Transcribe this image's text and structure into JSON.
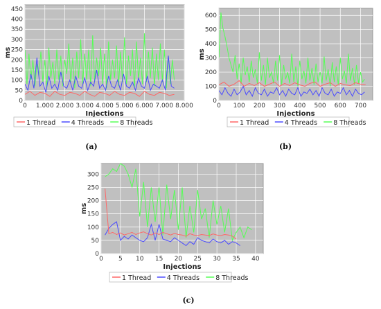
{
  "colors": {
    "plot_bg": "#c0c0c0",
    "grid": "#ffffff",
    "thread1": "#ff6666",
    "thread4": "#4a4aff",
    "thread8": "#55ff55"
  },
  "chart_data": [
    {
      "id": "a",
      "type": "line",
      "caption": "(a)",
      "xlabel": "Injections",
      "ylabel": "ms",
      "xlim": [
        0,
        8000
      ],
      "ylim": [
        0,
        470
      ],
      "xticks": [
        0,
        1000,
        2000,
        3000,
        4000,
        5000,
        6000,
        7000,
        8000
      ],
      "xtick_labels": [
        "0",
        "1.000",
        "2.000",
        "3.000",
        "4.000",
        "5.000",
        "6.000",
        "7.000",
        "8.000"
      ],
      "yticks": [
        0,
        50,
        100,
        150,
        200,
        250,
        300,
        350,
        400,
        450
      ],
      "legend_position": "bottom",
      "series": [
        {
          "name": "1 Thread",
          "color_key": "thread1",
          "x": [
            0,
            250,
            500,
            750,
            1000,
            1250,
            1500,
            1750,
            2000,
            2250,
            2500,
            2750,
            3000,
            3250,
            3500,
            3750,
            4000,
            4250,
            4500,
            4750,
            5000,
            5250,
            5500,
            5750,
            6000,
            6250,
            6500,
            6750,
            7000,
            7250,
            7500
          ],
          "values": [
            30,
            45,
            25,
            40,
            35,
            20,
            45,
            30,
            25,
            40,
            35,
            25,
            45,
            30,
            20,
            40,
            35,
            25,
            45,
            30,
            25,
            40,
            35,
            20,
            45,
            30,
            25,
            40,
            35,
            25,
            30
          ]
        },
        {
          "name": "4 Threads",
          "color_key": "thread4",
          "x": [
            0,
            150,
            300,
            450,
            600,
            750,
            900,
            1050,
            1200,
            1350,
            1500,
            1650,
            1800,
            1950,
            2100,
            2250,
            2400,
            2550,
            2700,
            2850,
            3000,
            3150,
            3300,
            3450,
            3600,
            3750,
            3900,
            4050,
            4200,
            4350,
            4500,
            4650,
            4800,
            4950,
            5100,
            5250,
            5400,
            5550,
            5700,
            5850,
            6000,
            6150,
            6300,
            6450,
            6600,
            6750,
            6900,
            7050,
            7200,
            7350,
            7500
          ],
          "values": [
            80,
            50,
            130,
            60,
            210,
            70,
            90,
            40,
            120,
            60,
            80,
            50,
            140,
            70,
            60,
            100,
            50,
            120,
            70,
            60,
            110,
            50,
            90,
            70,
            150,
            60,
            80,
            50,
            120,
            70,
            60,
            100,
            50,
            130,
            70,
            60,
            90,
            50,
            110,
            70,
            60,
            120,
            50,
            80,
            70,
            60,
            100,
            50,
            220,
            70,
            60
          ]
        },
        {
          "name": "8 Threads",
          "color_key": "thread8",
          "x": [
            0,
            100,
            200,
            300,
            400,
            500,
            600,
            700,
            800,
            900,
            1000,
            1100,
            1200,
            1300,
            1400,
            1500,
            1600,
            1700,
            1800,
            1900,
            2000,
            2100,
            2200,
            2300,
            2400,
            2500,
            2600,
            2700,
            2800,
            2900,
            3000,
            3100,
            3200,
            3300,
            3400,
            3500,
            3600,
            3700,
            3800,
            3900,
            4000,
            4100,
            4200,
            4300,
            4400,
            4500,
            4600,
            4700,
            4800,
            4900,
            5000,
            5100,
            5200,
            5300,
            5400,
            5500,
            5600,
            5700,
            5800,
            5900,
            6000,
            6100,
            6200,
            6300,
            6400,
            6500,
            6600,
            6700,
            6800,
            6900,
            7000,
            7100,
            7200,
            7300,
            7400,
            7500
          ],
          "values": [
            250,
            80,
            230,
            100,
            200,
            70,
            180,
            120,
            240,
            90,
            200,
            60,
            260,
            110,
            190,
            80,
            250,
            100,
            220,
            70,
            200,
            130,
            280,
            90,
            210,
            60,
            240,
            110,
            300,
            80,
            230,
            100,
            250,
            70,
            320,
            90,
            210,
            120,
            260,
            80,
            230,
            60,
            290,
            100,
            200,
            110,
            270,
            70,
            240,
            90,
            310,
            80,
            220,
            120,
            250,
            60,
            290,
            100,
            210,
            80,
            330,
            90,
            240,
            110,
            260,
            70,
            230,
            100,
            280,
            90,
            250,
            60,
            220,
            80,
            200,
            100
          ]
        }
      ]
    },
    {
      "id": "b",
      "type": "line",
      "caption": "(b)",
      "xlabel": "Injections",
      "ylabel": "ms",
      "xlim": [
        0,
        760
      ],
      "ylim": [
        0,
        650
      ],
      "xticks": [
        0,
        100,
        200,
        300,
        400,
        500,
        600,
        700
      ],
      "xtick_labels": [
        "0",
        "100",
        "200",
        "300",
        "400",
        "500",
        "600",
        "700"
      ],
      "yticks": [
        0,
        100,
        200,
        300,
        400,
        500,
        600
      ],
      "legend_position": "bottom",
      "series": [
        {
          "name": "1 Thread",
          "color_key": "thread1",
          "x": [
            0,
            25,
            50,
            75,
            100,
            125,
            150,
            175,
            200,
            225,
            250,
            275,
            300,
            325,
            350,
            375,
            400,
            425,
            450,
            475,
            500,
            525,
            550,
            575,
            600,
            625,
            650,
            675,
            700,
            725
          ],
          "values": [
            110,
            130,
            100,
            115,
            140,
            100,
            120,
            105,
            125,
            100,
            115,
            130,
            100,
            120,
            105,
            125,
            110,
            100,
            120,
            130,
            100,
            115,
            125,
            100,
            120,
            110,
            105,
            125,
            115,
            110
          ]
        },
        {
          "name": "4 Threads",
          "color_key": "thread4",
          "x": [
            0,
            15,
            30,
            45,
            60,
            75,
            90,
            105,
            120,
            135,
            150,
            165,
            180,
            195,
            210,
            225,
            240,
            255,
            270,
            285,
            300,
            315,
            330,
            345,
            360,
            375,
            390,
            405,
            420,
            435,
            450,
            465,
            480,
            495,
            510,
            525,
            540,
            555,
            570,
            585,
            600,
            615,
            630,
            645,
            660,
            675,
            690,
            705,
            720
          ],
          "values": [
            70,
            40,
            90,
            50,
            30,
            80,
            40,
            60,
            100,
            40,
            70,
            30,
            90,
            50,
            40,
            80,
            30,
            60,
            50,
            90,
            40,
            70,
            30,
            80,
            50,
            40,
            90,
            30,
            60,
            50,
            80,
            40,
            70,
            30,
            90,
            50,
            40,
            80,
            30,
            60,
            50,
            90,
            40,
            70,
            30,
            80,
            50,
            40,
            60
          ]
        },
        {
          "name": "8 Threads",
          "color_key": "thread8",
          "x": [
            0,
            10,
            20,
            30,
            40,
            50,
            60,
            70,
            80,
            90,
            100,
            110,
            120,
            130,
            140,
            150,
            160,
            170,
            180,
            190,
            200,
            210,
            220,
            230,
            240,
            250,
            260,
            270,
            280,
            290,
            300,
            310,
            320,
            330,
            340,
            350,
            360,
            370,
            380,
            390,
            400,
            410,
            420,
            430,
            440,
            450,
            460,
            470,
            480,
            490,
            500,
            510,
            520,
            530,
            540,
            550,
            560,
            570,
            580,
            590,
            600,
            610,
            620,
            630,
            640,
            650,
            660,
            670,
            680,
            690,
            700,
            710,
            720
          ],
          "values": [
            300,
            620,
            510,
            450,
            380,
            300,
            250,
            200,
            320,
            150,
            260,
            120,
            300,
            180,
            240,
            130,
            280,
            160,
            220,
            120,
            340,
            140,
            250,
            110,
            300,
            160,
            200,
            120,
            280,
            140,
            320,
            110,
            250,
            150,
            200,
            120,
            330,
            130,
            240,
            100,
            280,
            150,
            210,
            120,
            300,
            140,
            230,
            110,
            260,
            130,
            200,
            120,
            310,
            140,
            220,
            100,
            270,
            130,
            240,
            110,
            300,
            150,
            210,
            120,
            330,
            140,
            230,
            110,
            250,
            120,
            200,
            130,
            150
          ]
        }
      ]
    },
    {
      "id": "c",
      "type": "line",
      "caption": "(c)",
      "xlabel": "Injections",
      "ylabel": "ms",
      "xlim": [
        0,
        42
      ],
      "ylim": [
        0,
        340
      ],
      "xticks": [
        0,
        5,
        10,
        15,
        20,
        25,
        30,
        35,
        40
      ],
      "xtick_labels": [
        "0",
        "5",
        "10",
        "15",
        "20",
        "25",
        "30",
        "35",
        "40"
      ],
      "yticks": [
        0,
        50,
        100,
        150,
        200,
        250,
        300
      ],
      "legend_position": "bottom",
      "series": [
        {
          "name": "1 Thread",
          "color_key": "thread1",
          "x": [
            1,
            2,
            3,
            4,
            5,
            6,
            7,
            8,
            9,
            10,
            11,
            12,
            13,
            14,
            15,
            16,
            17,
            18,
            19,
            20,
            21,
            22,
            23,
            24,
            25,
            26,
            27,
            28,
            29,
            30,
            31,
            32,
            33,
            34,
            35
          ],
          "values": [
            245,
            75,
            80,
            72,
            78,
            70,
            75,
            80,
            72,
            78,
            82,
            75,
            70,
            78,
            72,
            80,
            75,
            70,
            76,
            72,
            70,
            65,
            75,
            70,
            68,
            72,
            70,
            68,
            74,
            70,
            68,
            72,
            70,
            66,
            55
          ]
        },
        {
          "name": "4 Threads",
          "color_key": "thread4",
          "x": [
            1,
            2,
            3,
            4,
            5,
            6,
            7,
            8,
            9,
            10,
            11,
            12,
            13,
            14,
            15,
            16,
            17,
            18,
            19,
            20,
            21,
            22,
            23,
            24,
            25,
            26,
            27,
            28,
            29,
            30,
            31,
            32,
            33,
            34,
            35,
            36
          ],
          "values": [
            70,
            95,
            110,
            120,
            50,
            65,
            55,
            70,
            60,
            50,
            45,
            60,
            110,
            50,
            110,
            55,
            50,
            45,
            60,
            50,
            40,
            30,
            45,
            35,
            60,
            50,
            45,
            40,
            55,
            45,
            40,
            50,
            35,
            45,
            40,
            30
          ]
        },
        {
          "name": "8 Threads",
          "color_key": "thread8",
          "x": [
            1,
            2,
            3,
            4,
            5,
            6,
            7,
            8,
            9,
            10,
            11,
            12,
            13,
            14,
            15,
            16,
            17,
            18,
            19,
            20,
            21,
            22,
            23,
            24,
            25,
            26,
            27,
            28,
            29,
            30,
            31,
            32,
            33,
            34,
            35,
            36,
            37,
            38,
            39
          ],
          "values": [
            290,
            300,
            320,
            310,
            340,
            330,
            300,
            250,
            320,
            140,
            270,
            100,
            250,
            120,
            250,
            70,
            260,
            130,
            240,
            90,
            250,
            60,
            180,
            80,
            240,
            130,
            170,
            60,
            200,
            110,
            180,
            80,
            170,
            50,
            80,
            100,
            60,
            100,
            90
          ]
        }
      ]
    }
  ]
}
